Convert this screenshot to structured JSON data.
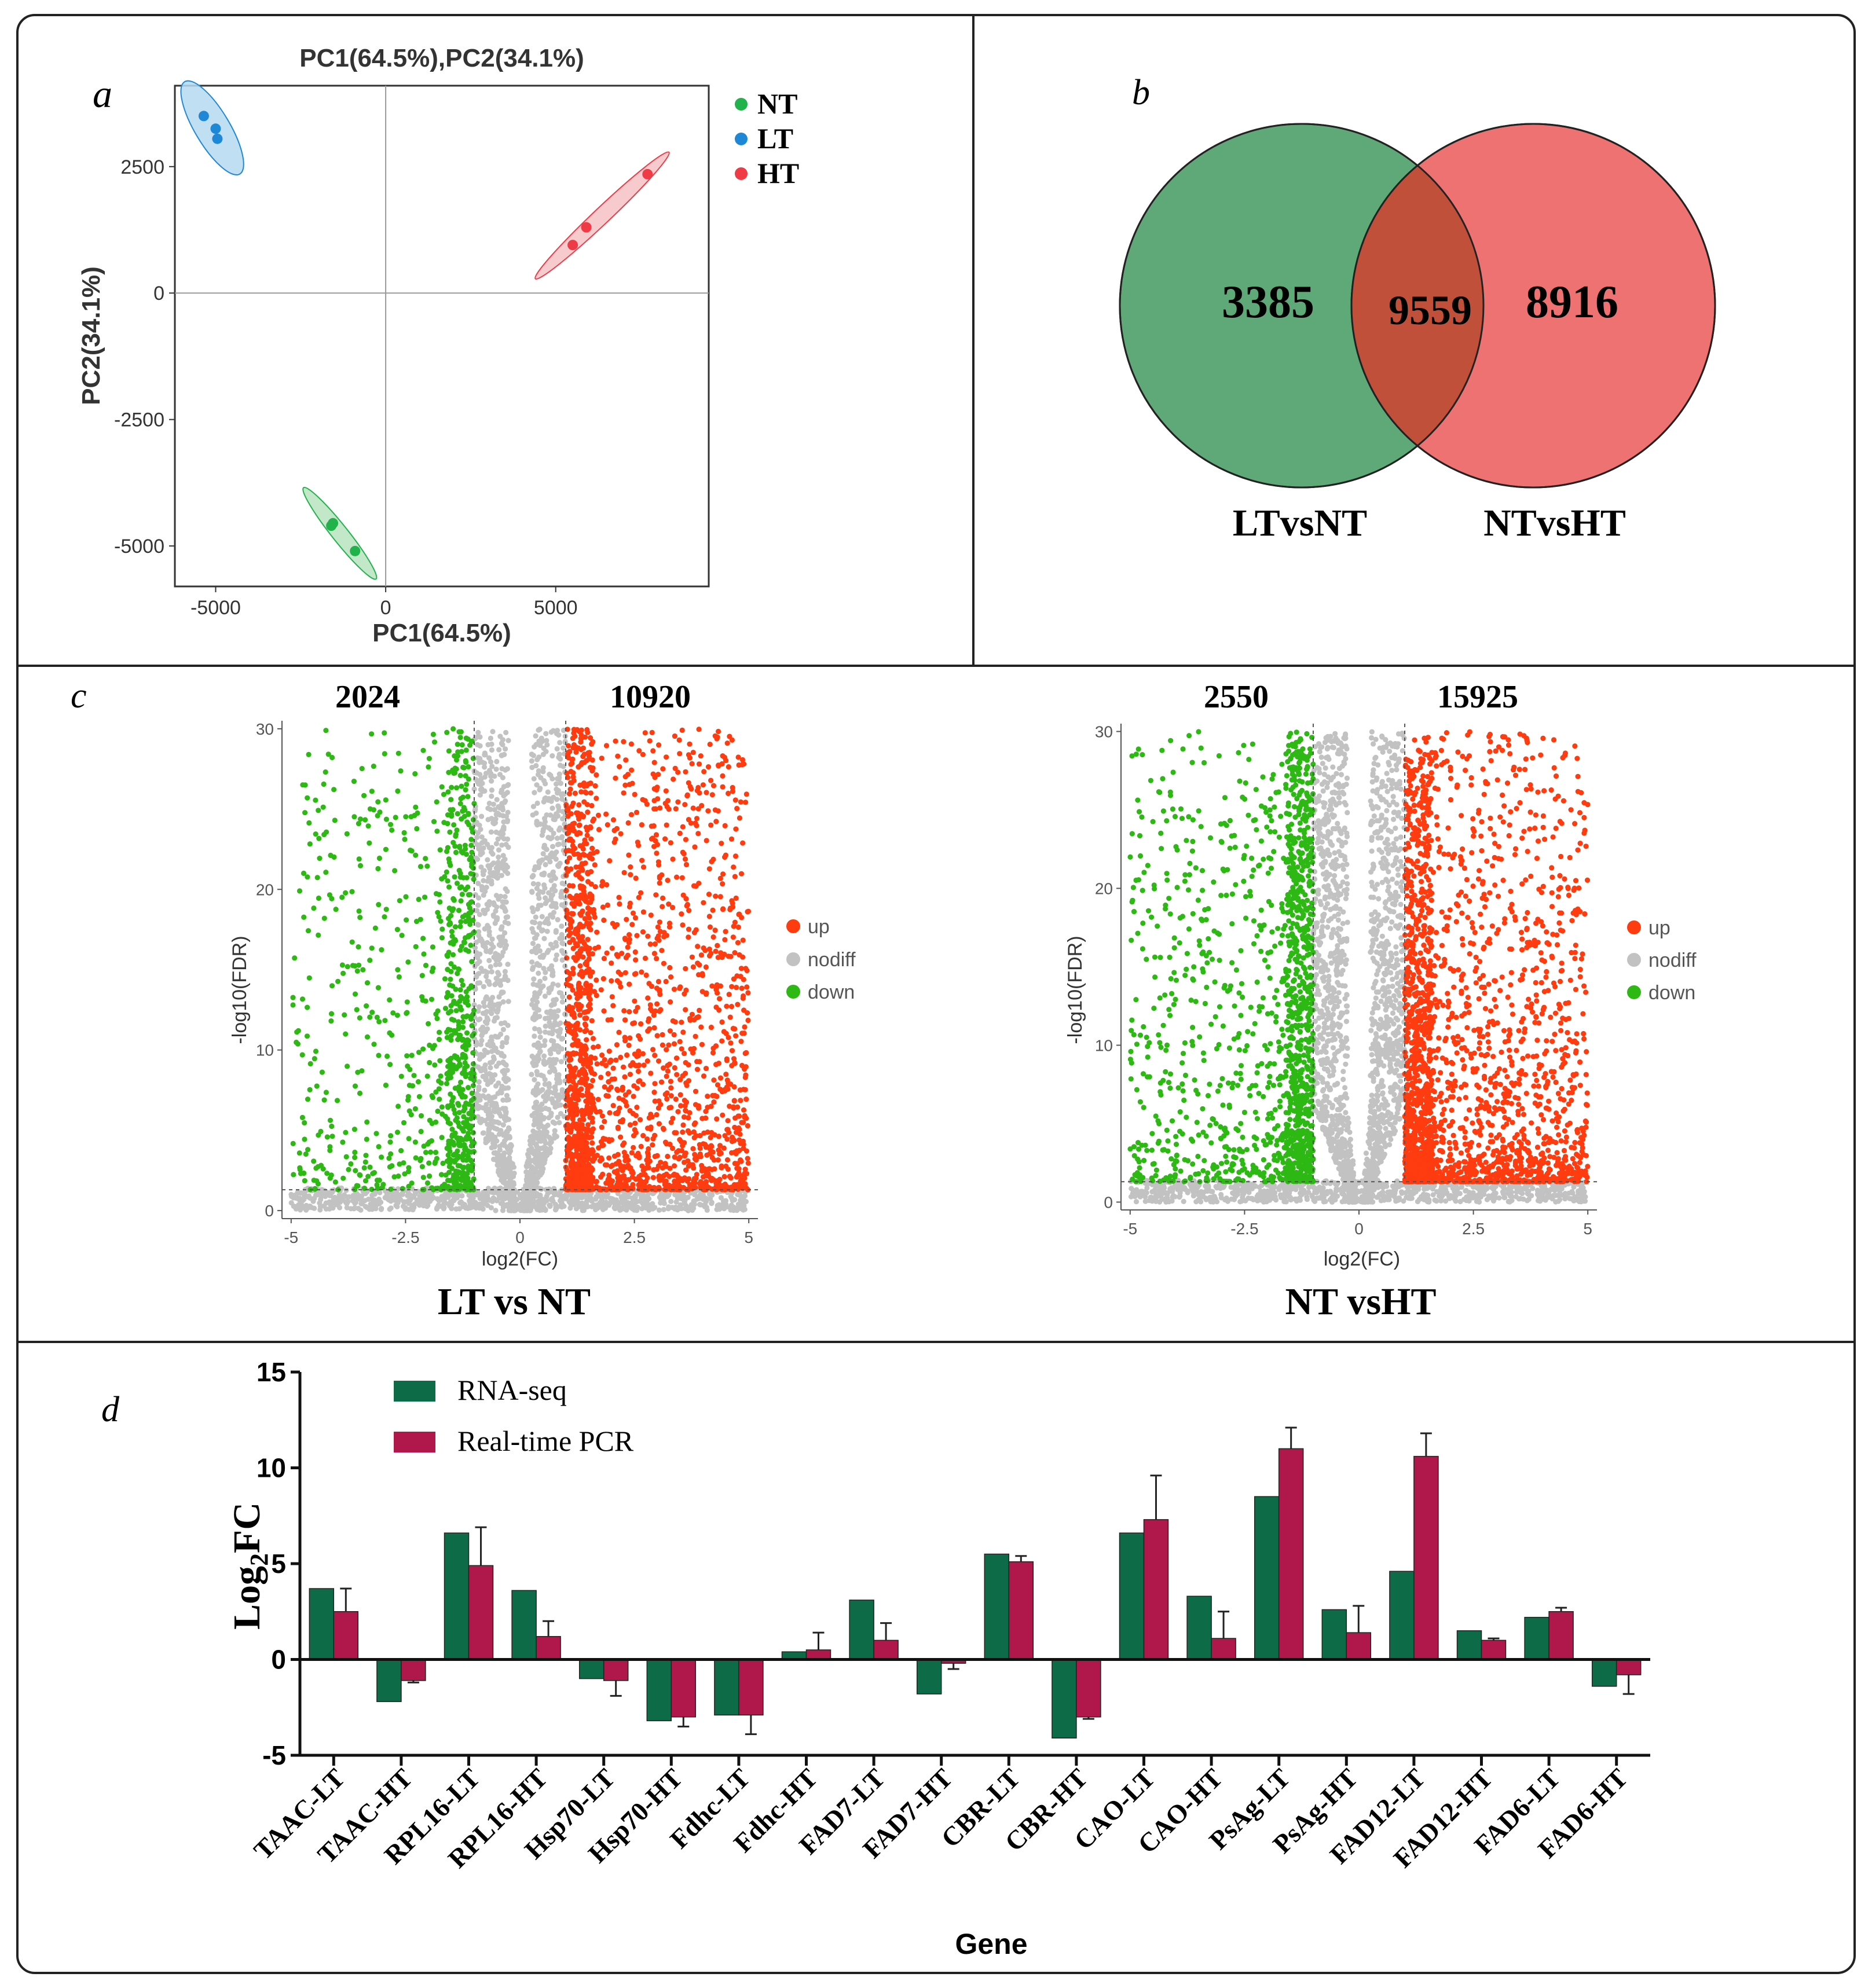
{
  "colors": {
    "nt_green": "#21b24b",
    "lt_blue": "#1f88d6",
    "ht_red": "#ee3b46",
    "venn_green": "#5fa878",
    "venn_red": "#ef7272",
    "venn_overlap": "#c0503a",
    "volcano_up": "#ff3b10",
    "volcano_down": "#2db814",
    "volcano_nodiff": "#c2c2c2",
    "rnaseq": "#0e6b48",
    "pcr": "#b0174a",
    "frame": "#222222"
  },
  "panel_a": {
    "letter": "a",
    "legend": {
      "nt": "NT",
      "lt": "LT",
      "ht": "HT"
    },
    "chart_data": {
      "type": "scatter",
      "title": "PC1(64.5%),PC2(34.1%)",
      "xlabel": "PC1(64.5%)",
      "ylabel": "PC2(34.1%)",
      "xlim": [
        -6200,
        9500
      ],
      "ylim": [
        -5800,
        4100
      ],
      "xticks": [
        -5000,
        0,
        5000
      ],
      "yticks": [
        -5000,
        -2500,
        0,
        2500
      ],
      "xtick_labels": [
        "-5000",
        "0",
        "5000"
      ],
      "ytick_labels": [
        "-5000",
        "-2500",
        "0",
        "2500"
      ],
      "series": [
        {
          "name": "NT",
          "points": [
            [
              -1550,
              -4550
            ],
            [
              -1600,
              -4600
            ],
            [
              -900,
              -5100
            ]
          ]
        },
        {
          "name": "LT",
          "points": [
            [
              -5350,
              3500
            ],
            [
              -5000,
              3250
            ],
            [
              -4950,
              3050
            ]
          ]
        },
        {
          "name": "HT",
          "points": [
            [
              7700,
              2350
            ],
            [
              5900,
              1300
            ],
            [
              5500,
              950
            ]
          ]
        }
      ]
    }
  },
  "panel_b": {
    "letter": "b",
    "chart_data": {
      "type": "venn",
      "sets": [
        "LTvsNT",
        "NTvsHT"
      ],
      "only_left": "3385",
      "intersection": "9559",
      "only_right": "8916"
    }
  },
  "panel_c": {
    "letter": "c",
    "charts": [
      {
        "type": "scatter",
        "name": "LT vs NT",
        "down_count": "2024",
        "up_count": "10920",
        "xlabel": "log2(FC)",
        "ylabel": "-log10(FDR)",
        "xlim": [
          -5.2,
          5.2
        ],
        "ylim": [
          -0.5,
          30.5
        ],
        "xticks": [
          -5,
          -2.5,
          0,
          2.5,
          5
        ],
        "xtick_labels": [
          "-5",
          "-2.5",
          "0",
          "2.5",
          "5"
        ],
        "yticks": [
          0,
          10,
          20,
          30
        ],
        "ytick_labels": [
          "0",
          "10",
          "20",
          "30"
        ],
        "threshold_fc": 1,
        "threshold_fdr": 1.3,
        "legend": [
          "up",
          "nodiff",
          "down"
        ],
        "series": [
          {
            "name": "up",
            "n_points_drawn": 2100
          },
          {
            "name": "nodiff",
            "n_points_drawn": 2600
          },
          {
            "name": "down",
            "n_points_drawn": 900
          }
        ]
      },
      {
        "type": "scatter",
        "name": "NT vsHT",
        "down_count": "2550",
        "up_count": "15925",
        "xlabel": "log2(FC)",
        "ylabel": "-log10(FDR)",
        "xlim": [
          -5.2,
          5.2
        ],
        "ylim": [
          -0.5,
          30.5
        ],
        "xticks": [
          -5,
          -2.5,
          0,
          2.5,
          5
        ],
        "xtick_labels": [
          "-5",
          "-2.5",
          "0",
          "2.5",
          "5"
        ],
        "yticks": [
          0,
          10,
          20,
          30
        ],
        "ytick_labels": [
          "0",
          "10",
          "20",
          "30"
        ],
        "threshold_fc": 1,
        "threshold_fdr": 1.3,
        "legend": [
          "up",
          "nodiff",
          "down"
        ],
        "series": [
          {
            "name": "up",
            "n_points_drawn": 2300
          },
          {
            "name": "nodiff",
            "n_points_drawn": 2600
          },
          {
            "name": "down",
            "n_points_drawn": 1400
          }
        ]
      }
    ]
  },
  "panel_d": {
    "letter": "d",
    "chart_data": {
      "type": "bar",
      "xlabel": "Gene",
      "ylabel_main": "Log",
      "ylabel_sub": "2",
      "ylabel_tail": "FC",
      "ylim": [
        -5,
        15
      ],
      "yticks": [
        -5,
        0,
        5,
        10,
        15
      ],
      "ytick_labels": [
        "-5",
        "0",
        "5",
        "10",
        "15"
      ],
      "categories": [
        "TAAC-LT",
        "TAAC-HT",
        "RPL16-LT",
        "RPL16-HT",
        "Hsp70-LT",
        "Hsp70-HT",
        "Fdhc-LT",
        "Fdhc-HT",
        "FAD7-LT",
        "FAD7-HT",
        "CBR-LT",
        "CBR-HT",
        "CAO-LT",
        "CAO-HT",
        "PsAg-LT",
        "PsAg-HT",
        "FAD12-LT",
        "FAD12-HT",
        "FAD6-LT",
        "FAD6-HT"
      ],
      "series": [
        {
          "name": "RNA-seq",
          "values": [
            3.7,
            -2.2,
            6.6,
            3.6,
            -1.0,
            -3.2,
            -2.9,
            0.4,
            3.1,
            -1.8,
            5.5,
            -4.1,
            6.6,
            3.3,
            8.5,
            2.6,
            4.6,
            1.5,
            2.2,
            -1.4
          ]
        },
        {
          "name": "Real-time PCR",
          "values": [
            2.5,
            -1.1,
            4.9,
            1.2,
            -1.1,
            -3.0,
            -2.9,
            0.5,
            1.0,
            -0.2,
            5.1,
            -3.0,
            7.3,
            1.1,
            11.0,
            1.4,
            10.6,
            1.0,
            2.5,
            -0.8
          ],
          "errors": [
            1.2,
            0.1,
            2.0,
            0.8,
            0.8,
            0.5,
            1.0,
            0.9,
            0.9,
            0.3,
            0.3,
            0.1,
            2.3,
            1.4,
            1.1,
            1.4,
            1.2,
            0.1,
            0.2,
            1.0
          ]
        }
      ]
    }
  }
}
